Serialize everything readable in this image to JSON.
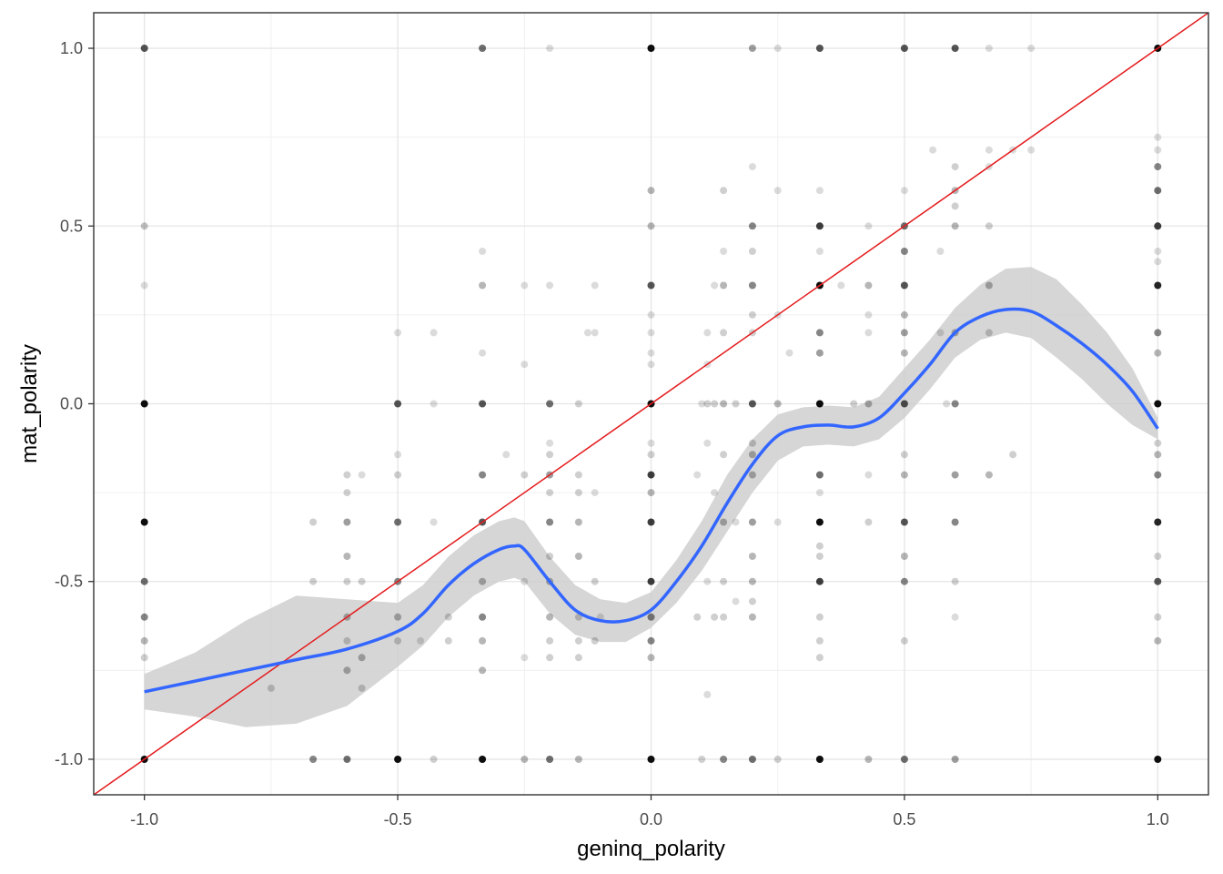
{
  "chart_data": {
    "type": "scatter",
    "xlabel": "geninq_polarity",
    "ylabel": "mat_polarity",
    "xlim": [
      -1.1,
      1.1
    ],
    "ylim": [
      -1.1,
      1.1
    ],
    "x_ticks": [
      -1.0,
      -0.5,
      0.0,
      0.5,
      1.0
    ],
    "y_ticks": [
      -1.0,
      -0.5,
      0.0,
      0.5,
      1.0
    ],
    "x_tick_labels": [
      "-1.0",
      "-0.5",
      "0.0",
      "0.5",
      "1.0"
    ],
    "y_tick_labels": [
      "-1.0",
      "-0.5",
      "0.0",
      "0.5",
      "1.0"
    ],
    "grid": true,
    "point_color": "#000000",
    "smooth_color": "#3366ff",
    "ribbon_color": "#cccccc",
    "reference_line_color": "#e41a1c",
    "reference_line": {
      "slope": 1,
      "intercept": 0
    },
    "points": [
      [
        -1.0,
        1.0,
        0.7
      ],
      [
        -1.0,
        0.5,
        0.25
      ],
      [
        -1.0,
        0.333,
        0.15
      ],
      [
        -1.0,
        0.0,
        1.0
      ],
      [
        -1.0,
        -0.333,
        1.0
      ],
      [
        -1.0,
        -0.5,
        0.6
      ],
      [
        -1.0,
        -0.6,
        0.5
      ],
      [
        -1.0,
        -0.667,
        0.3
      ],
      [
        -1.0,
        -0.714,
        0.2
      ],
      [
        -1.0,
        -1.0,
        1.0
      ],
      [
        -0.75,
        -0.8,
        0.2
      ],
      [
        -0.667,
        -0.333,
        0.2
      ],
      [
        -0.667,
        -0.5,
        0.2
      ],
      [
        -0.667,
        -1.0,
        0.5
      ],
      [
        -0.6,
        -0.2,
        0.2
      ],
      [
        -0.6,
        -0.25,
        0.2
      ],
      [
        -0.6,
        -0.333,
        0.4
      ],
      [
        -0.6,
        -0.429,
        0.3
      ],
      [
        -0.6,
        -0.5,
        0.2
      ],
      [
        -0.6,
        -0.6,
        0.3
      ],
      [
        -0.6,
        -0.667,
        0.2
      ],
      [
        -0.6,
        -0.75,
        0.3
      ],
      [
        -0.6,
        -1.0,
        0.6
      ],
      [
        -0.571,
        -0.8,
        0.2
      ],
      [
        -0.571,
        -0.2,
        0.15
      ],
      [
        -0.571,
        -0.5,
        0.2
      ],
      [
        -0.571,
        -0.714,
        0.3
      ],
      [
        -0.5,
        0.2,
        0.15
      ],
      [
        -0.5,
        0.0,
        0.7
      ],
      [
        -0.5,
        -0.143,
        0.15
      ],
      [
        -0.5,
        -0.2,
        0.2
      ],
      [
        -0.5,
        -0.333,
        0.6
      ],
      [
        -0.5,
        -0.5,
        0.5
      ],
      [
        -0.5,
        -0.6,
        0.3
      ],
      [
        -0.5,
        -0.667,
        0.2
      ],
      [
        -0.5,
        -1.0,
        1.0
      ],
      [
        -0.455,
        -0.667,
        0.15
      ],
      [
        -0.429,
        0.2,
        0.15
      ],
      [
        -0.429,
        0.0,
        0.15
      ],
      [
        -0.429,
        -0.333,
        0.15
      ],
      [
        -0.429,
        -1.0,
        0.2
      ],
      [
        -0.4,
        -0.6,
        0.2
      ],
      [
        -0.4,
        -0.667,
        0.2
      ],
      [
        -0.333,
        0.429,
        0.15
      ],
      [
        -0.333,
        0.333,
        0.3
      ],
      [
        -0.333,
        0.143,
        0.15
      ],
      [
        -0.333,
        0.0,
        0.7
      ],
      [
        -0.333,
        -0.2,
        0.5
      ],
      [
        -0.333,
        -0.333,
        0.7
      ],
      [
        -0.333,
        -0.5,
        0.3
      ],
      [
        -0.333,
        -0.6,
        0.5
      ],
      [
        -0.333,
        -0.667,
        0.3
      ],
      [
        -0.333,
        -0.75,
        0.3
      ],
      [
        -0.333,
        -1.0,
        1.0
      ],
      [
        -0.333,
        1.0,
        0.6
      ],
      [
        -0.286,
        -0.143,
        0.15
      ],
      [
        -0.25,
        0.333,
        0.15
      ],
      [
        -0.25,
        0.111,
        0.15
      ],
      [
        -0.25,
        -0.2,
        0.2
      ],
      [
        -0.25,
        -0.5,
        0.15
      ],
      [
        -0.25,
        -0.714,
        0.15
      ],
      [
        -0.25,
        -1.0,
        0.3
      ],
      [
        -0.2,
        1.0,
        0.15
      ],
      [
        -0.2,
        0.333,
        0.15
      ],
      [
        -0.2,
        0.0,
        0.6
      ],
      [
        -0.2,
        -0.111,
        0.15
      ],
      [
        -0.2,
        -0.143,
        0.2
      ],
      [
        -0.2,
        -0.2,
        0.4
      ],
      [
        -0.2,
        -0.25,
        0.2
      ],
      [
        -0.2,
        -0.333,
        0.5
      ],
      [
        -0.2,
        -0.429,
        0.2
      ],
      [
        -0.2,
        -0.5,
        0.3
      ],
      [
        -0.2,
        -0.6,
        0.3
      ],
      [
        -0.2,
        -0.667,
        0.2
      ],
      [
        -0.2,
        -0.714,
        0.2
      ],
      [
        -0.2,
        -1.0,
        0.6
      ],
      [
        -0.143,
        0.0,
        0.2
      ],
      [
        -0.143,
        -0.2,
        0.2
      ],
      [
        -0.143,
        -0.25,
        0.2
      ],
      [
        -0.143,
        -0.333,
        0.3
      ],
      [
        -0.143,
        -0.429,
        0.3
      ],
      [
        -0.143,
        -0.6,
        0.2
      ],
      [
        -0.143,
        -0.667,
        0.2
      ],
      [
        -0.143,
        -0.714,
        0.2
      ],
      [
        -0.143,
        -1.0,
        0.3
      ],
      [
        -0.125,
        0.2,
        0.15
      ],
      [
        -0.111,
        0.333,
        0.15
      ],
      [
        -0.111,
        0.2,
        0.15
      ],
      [
        -0.111,
        -0.25,
        0.15
      ],
      [
        -0.111,
        -0.5,
        0.2
      ],
      [
        -0.111,
        -0.667,
        0.2
      ],
      [
        -0.1,
        -0.6,
        0.15
      ],
      [
        0.0,
        1.0,
        1.0
      ],
      [
        0.0,
        0.6,
        0.3
      ],
      [
        0.0,
        0.5,
        0.3
      ],
      [
        0.0,
        0.333,
        0.7
      ],
      [
        0.0,
        0.25,
        0.15
      ],
      [
        0.0,
        0.2,
        0.15
      ],
      [
        0.0,
        0.143,
        0.15
      ],
      [
        0.0,
        0.111,
        0.15
      ],
      [
        0.0,
        0.0,
        1.0
      ],
      [
        0.0,
        -0.111,
        0.15
      ],
      [
        0.0,
        -0.143,
        0.2
      ],
      [
        0.0,
        -0.2,
        0.8
      ],
      [
        0.0,
        -0.25,
        0.3
      ],
      [
        0.0,
        -0.333,
        0.8
      ],
      [
        0.0,
        -0.5,
        0.8
      ],
      [
        0.0,
        -0.6,
        0.5
      ],
      [
        0.0,
        -0.667,
        0.5
      ],
      [
        0.0,
        -0.714,
        0.3
      ],
      [
        0.0,
        -1.0,
        1.0
      ],
      [
        0.091,
        -0.2,
        0.15
      ],
      [
        0.091,
        -0.6,
        0.2
      ],
      [
        0.1,
        0.0,
        0.15
      ],
      [
        0.1,
        -1.0,
        0.2
      ],
      [
        0.111,
        0.2,
        0.15
      ],
      [
        0.111,
        0.111,
        0.15
      ],
      [
        0.111,
        0.0,
        0.2
      ],
      [
        0.111,
        -0.111,
        0.15
      ],
      [
        0.111,
        -0.5,
        0.15
      ],
      [
        0.111,
        -0.818,
        0.15
      ],
      [
        0.125,
        0.333,
        0.15
      ],
      [
        0.125,
        0.0,
        0.2
      ],
      [
        0.125,
        -0.25,
        0.15
      ],
      [
        0.125,
        -0.6,
        0.2
      ],
      [
        0.143,
        0.6,
        0.2
      ],
      [
        0.143,
        0.429,
        0.15
      ],
      [
        0.143,
        0.333,
        0.3
      ],
      [
        0.143,
        0.2,
        0.2
      ],
      [
        0.143,
        0.0,
        0.3
      ],
      [
        0.143,
        -0.143,
        0.2
      ],
      [
        0.143,
        -0.333,
        0.3
      ],
      [
        0.143,
        -0.5,
        0.2
      ],
      [
        0.143,
        -0.6,
        0.2
      ],
      [
        0.143,
        -1.0,
        0.5
      ],
      [
        0.167,
        0.0,
        0.2
      ],
      [
        0.167,
        -0.333,
        0.15
      ],
      [
        0.167,
        -0.556,
        0.15
      ],
      [
        0.2,
        1.0,
        0.4
      ],
      [
        0.2,
        0.667,
        0.15
      ],
      [
        0.2,
        0.5,
        0.5
      ],
      [
        0.2,
        0.429,
        0.2
      ],
      [
        0.2,
        0.333,
        0.5
      ],
      [
        0.2,
        0.25,
        0.2
      ],
      [
        0.2,
        0.2,
        0.2
      ],
      [
        0.2,
        0.0,
        0.7
      ],
      [
        0.2,
        -0.111,
        0.2
      ],
      [
        0.2,
        -0.143,
        0.3
      ],
      [
        0.2,
        -0.2,
        0.3
      ],
      [
        0.2,
        -0.333,
        0.4
      ],
      [
        0.2,
        -0.429,
        0.3
      ],
      [
        0.2,
        -0.5,
        0.3
      ],
      [
        0.2,
        -0.556,
        0.2
      ],
      [
        0.2,
        -0.6,
        0.3
      ],
      [
        0.2,
        -1.0,
        0.6
      ],
      [
        0.25,
        1.0,
        0.15
      ],
      [
        0.25,
        0.6,
        0.15
      ],
      [
        0.25,
        0.25,
        0.15
      ],
      [
        0.25,
        0.0,
        0.3
      ],
      [
        0.25,
        -0.333,
        0.15
      ],
      [
        0.25,
        -1.0,
        0.2
      ],
      [
        0.273,
        0.143,
        0.15
      ],
      [
        0.333,
        1.0,
        0.7
      ],
      [
        0.333,
        0.6,
        0.15
      ],
      [
        0.333,
        0.5,
        0.8
      ],
      [
        0.333,
        0.429,
        0.15
      ],
      [
        0.333,
        0.333,
        1.0
      ],
      [
        0.333,
        0.2,
        0.5
      ],
      [
        0.333,
        0.143,
        0.4
      ],
      [
        0.333,
        0.0,
        1.0
      ],
      [
        0.333,
        -0.2,
        0.6
      ],
      [
        0.333,
        -0.25,
        0.15
      ],
      [
        0.333,
        -0.333,
        1.0
      ],
      [
        0.333,
        -0.4,
        0.2
      ],
      [
        0.333,
        -0.429,
        0.2
      ],
      [
        0.333,
        -0.5,
        0.8
      ],
      [
        0.333,
        -0.6,
        0.2
      ],
      [
        0.333,
        -0.667,
        0.2
      ],
      [
        0.333,
        -0.714,
        0.2
      ],
      [
        0.333,
        -1.0,
        1.0
      ],
      [
        0.375,
        0.333,
        0.15
      ],
      [
        0.4,
        0.0,
        0.2
      ],
      [
        0.429,
        0.5,
        0.15
      ],
      [
        0.429,
        0.333,
        0.3
      ],
      [
        0.429,
        0.25,
        0.15
      ],
      [
        0.429,
        0.2,
        0.15
      ],
      [
        0.429,
        0.0,
        0.3
      ],
      [
        0.429,
        -0.2,
        0.15
      ],
      [
        0.429,
        -0.333,
        0.2
      ],
      [
        0.429,
        -1.0,
        0.3
      ],
      [
        0.5,
        1.0,
        0.7
      ],
      [
        0.5,
        0.6,
        0.15
      ],
      [
        0.5,
        0.5,
        0.6
      ],
      [
        0.5,
        0.429,
        0.5
      ],
      [
        0.5,
        0.333,
        0.7
      ],
      [
        0.5,
        0.25,
        0.3
      ],
      [
        0.5,
        0.2,
        0.4
      ],
      [
        0.5,
        0.143,
        0.3
      ],
      [
        0.5,
        0.0,
        0.7
      ],
      [
        0.5,
        -0.143,
        0.2
      ],
      [
        0.5,
        -0.2,
        0.3
      ],
      [
        0.5,
        -0.333,
        0.7
      ],
      [
        0.5,
        -0.429,
        0.3
      ],
      [
        0.5,
        -0.5,
        0.5
      ],
      [
        0.5,
        -0.667,
        0.2
      ],
      [
        0.5,
        -1.0,
        0.6
      ],
      [
        0.556,
        0.714,
        0.15
      ],
      [
        0.571,
        0.429,
        0.15
      ],
      [
        0.571,
        0.2,
        0.15
      ],
      [
        0.583,
        0.0,
        0.15
      ],
      [
        0.6,
        1.0,
        0.7
      ],
      [
        0.6,
        0.667,
        0.2
      ],
      [
        0.6,
        0.6,
        0.3
      ],
      [
        0.6,
        0.556,
        0.2
      ],
      [
        0.6,
        0.5,
        0.3
      ],
      [
        0.6,
        0.2,
        0.3
      ],
      [
        0.6,
        0.0,
        0.5
      ],
      [
        0.6,
        -0.2,
        0.4
      ],
      [
        0.6,
        -0.333,
        0.5
      ],
      [
        0.6,
        -0.5,
        0.2
      ],
      [
        0.6,
        -0.6,
        0.15
      ],
      [
        0.6,
        -1.0,
        0.4
      ],
      [
        0.667,
        1.0,
        0.15
      ],
      [
        0.667,
        0.714,
        0.15
      ],
      [
        0.667,
        0.667,
        0.15
      ],
      [
        0.667,
        0.5,
        0.2
      ],
      [
        0.667,
        0.333,
        0.3
      ],
      [
        0.667,
        0.2,
        0.2
      ],
      [
        0.667,
        -0.2,
        0.3
      ],
      [
        0.714,
        0.714,
        0.15
      ],
      [
        0.714,
        -0.143,
        0.2
      ],
      [
        0.75,
        0.714,
        0.15
      ],
      [
        0.75,
        1.0,
        0.15
      ],
      [
        1.0,
        1.0,
        1.0
      ],
      [
        1.0,
        0.75,
        0.15
      ],
      [
        1.0,
        0.714,
        0.15
      ],
      [
        1.0,
        0.667,
        0.5
      ],
      [
        1.0,
        0.6,
        0.6
      ],
      [
        1.0,
        0.5,
        0.8
      ],
      [
        1.0,
        0.429,
        0.15
      ],
      [
        1.0,
        0.4,
        0.15
      ],
      [
        1.0,
        0.333,
        0.9
      ],
      [
        1.0,
        0.2,
        0.5
      ],
      [
        1.0,
        0.143,
        0.3
      ],
      [
        1.0,
        0.0,
        1.0
      ],
      [
        1.0,
        -0.111,
        0.2
      ],
      [
        1.0,
        -0.143,
        0.3
      ],
      [
        1.0,
        -0.2,
        0.5
      ],
      [
        1.0,
        -0.333,
        0.9
      ],
      [
        1.0,
        -0.429,
        0.2
      ],
      [
        1.0,
        -0.5,
        0.7
      ],
      [
        1.0,
        -0.6,
        0.2
      ],
      [
        1.0,
        -0.667,
        0.3
      ],
      [
        1.0,
        -1.0,
        1.0
      ]
    ],
    "smooth_fit": {
      "x": [
        -1.0,
        -0.9,
        -0.8,
        -0.7,
        -0.6,
        -0.5,
        -0.45,
        -0.4,
        -0.35,
        -0.3,
        -0.27,
        -0.25,
        -0.2,
        -0.15,
        -0.1,
        -0.05,
        0.0,
        0.05,
        0.1,
        0.15,
        0.2,
        0.25,
        0.3,
        0.35,
        0.4,
        0.45,
        0.5,
        0.55,
        0.6,
        0.65,
        0.7,
        0.75,
        0.8,
        0.85,
        0.9,
        0.95,
        1.0
      ],
      "y": [
        -0.81,
        -0.78,
        -0.75,
        -0.72,
        -0.69,
        -0.64,
        -0.59,
        -0.51,
        -0.45,
        -0.41,
        -0.4,
        -0.41,
        -0.5,
        -0.58,
        -0.61,
        -0.61,
        -0.58,
        -0.5,
        -0.4,
        -0.28,
        -0.17,
        -0.09,
        -0.065,
        -0.06,
        -0.065,
        -0.04,
        0.03,
        0.11,
        0.2,
        0.245,
        0.265,
        0.26,
        0.22,
        0.17,
        0.11,
        0.035,
        -0.07
      ],
      "lower": [
        -0.86,
        -0.88,
        -0.91,
        -0.9,
        -0.85,
        -0.74,
        -0.68,
        -0.6,
        -0.54,
        -0.5,
        -0.49,
        -0.5,
        -0.59,
        -0.65,
        -0.67,
        -0.67,
        -0.63,
        -0.56,
        -0.47,
        -0.36,
        -0.25,
        -0.16,
        -0.12,
        -0.115,
        -0.12,
        -0.1,
        -0.04,
        0.04,
        0.13,
        0.18,
        0.2,
        0.185,
        0.13,
        0.07,
        0.0,
        -0.06,
        -0.1
      ],
      "upper": [
        -0.76,
        -0.7,
        -0.61,
        -0.54,
        -0.55,
        -0.56,
        -0.51,
        -0.43,
        -0.37,
        -0.33,
        -0.32,
        -0.33,
        -0.43,
        -0.51,
        -0.55,
        -0.56,
        -0.53,
        -0.44,
        -0.33,
        -0.2,
        -0.1,
        -0.03,
        -0.01,
        -0.005,
        -0.01,
        0.02,
        0.1,
        0.18,
        0.27,
        0.335,
        0.38,
        0.385,
        0.35,
        0.28,
        0.2,
        0.1,
        -0.04
      ]
    }
  }
}
